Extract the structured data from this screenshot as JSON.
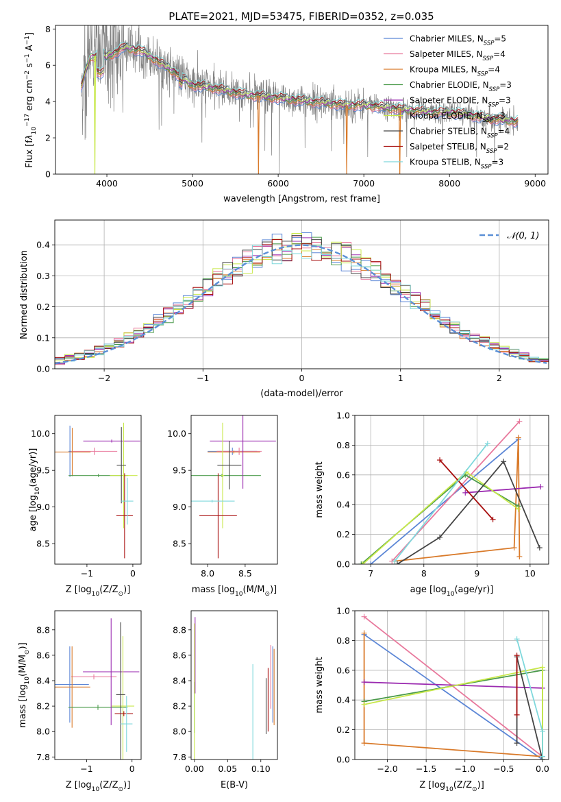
{
  "figure_title": "PLATE=2021, MJD=53475, FIBERID=0352, z=0.035",
  "colors": {
    "Chabrier MILES": "#5b86d6",
    "Salpeter MILES": "#e8789c",
    "Kroupa MILES": "#d97a2a",
    "Chabrier ELODIE": "#4a9a4a",
    "Salpeter ELODIE": "#9b2bb0",
    "Kroupa ELODIE": "#c8e84a",
    "Chabrier STELIB": "#444444",
    "Salpeter STELIB": "#a80f0f",
    "Kroupa STELIB": "#7fd8dc"
  },
  "chart_data": [
    {
      "id": "spectrum",
      "type": "line",
      "title": "",
      "xlabel": "wavelength [Angstrom, rest frame]",
      "ylabel_parts": [
        "Flux [f",
        "λ",
        "10",
        "−17",
        " erg cm",
        "−2",
        " s",
        "−1",
        " A",
        "−1",
        "]"
      ],
      "xlim": [
        3400,
        9150
      ],
      "ylim": [
        0,
        8.2
      ],
      "xticks": [
        4000,
        5000,
        6000,
        7000,
        8000,
        9000
      ],
      "yticks": [
        0,
        2,
        4,
        6,
        8
      ],
      "data_color": "#808080",
      "legend_placement": "upper-right",
      "legend": [
        {
          "name": "Chabrier MILES",
          "nssp": "5"
        },
        {
          "name": "Salpeter MILES",
          "nssp": "4"
        },
        {
          "name": "Kroupa MILES",
          "nssp": "4"
        },
        {
          "name": "Chabrier ELODIE",
          "nssp": "3"
        },
        {
          "name": "Salpeter ELODIE",
          "nssp": "3"
        },
        {
          "name": "Kroupa ELODIE",
          "nssp": "3"
        },
        {
          "name": "Chabrier STELIB",
          "nssp": "4"
        },
        {
          "name": "Salpeter STELIB",
          "nssp": "2"
        },
        {
          "name": "Kroupa STELIB",
          "nssp": "3"
        }
      ],
      "continuum": {
        "x": [
          3700,
          3800,
          3900,
          4000,
          4100,
          4200,
          4400,
          4600,
          4800,
          5000,
          5200,
          5400,
          5600,
          5800,
          6000,
          6200,
          6400,
          6600,
          6800,
          7000,
          7200,
          7400,
          7600,
          7800,
          8000,
          8200,
          8400,
          8600,
          8800
        ],
        "y": [
          4.8,
          6.4,
          6.6,
          6.5,
          6.7,
          7.0,
          6.8,
          6.2,
          5.6,
          4.9,
          4.8,
          4.6,
          4.4,
          4.3,
          4.2,
          4.1,
          4.0,
          3.9,
          3.8,
          3.8,
          3.7,
          3.6,
          3.5,
          3.4,
          3.4,
          3.3,
          3.1,
          3.0,
          2.9
        ]
      },
      "model_dropouts": [
        {
          "model": "Kroupa MILES",
          "x": 5770
        },
        {
          "model": "Kroupa MILES",
          "x": 6800
        },
        {
          "model": "Kroupa MILES",
          "x": 7420
        },
        {
          "model": "Kroupa ELODIE",
          "x": 3860
        }
      ]
    },
    {
      "id": "residuals",
      "type": "step",
      "xlabel": "(data-model)/error",
      "ylabel": "Normed distribution",
      "xlim": [
        -2.5,
        2.5
      ],
      "ylim": [
        0,
        0.48
      ],
      "xticks": [
        -2,
        -1,
        0,
        1,
        2
      ],
      "xtick_labels": [
        "−2",
        "−1",
        "0",
        "1",
        "2"
      ],
      "yticks": [
        0,
        0.1,
        0.2,
        0.3,
        0.4
      ],
      "ytick_labels": [
        "0.0",
        "0.1",
        "0.2",
        "0.3",
        "0.4"
      ],
      "grid": true,
      "legend_placement": "upper-right",
      "gaussian": {
        "label": "𝒩(0, 1)",
        "mean": 0,
        "sigma": 1,
        "color": "#5b8fd6"
      },
      "bin_width": 0.1
    },
    {
      "id": "age-vs-z",
      "type": "errorbar",
      "xlabel_parts": [
        "Z [log",
        "10",
        "(Z/Z",
        "⊙",
        ")]"
      ],
      "ylabel_parts": [
        "age  [log",
        "10",
        "(age/yr)]"
      ],
      "xlim": [
        -1.7,
        0.18
      ],
      "ylim": [
        8.22,
        10.25
      ],
      "xticks": [
        -1,
        0
      ],
      "xtick_labels": [
        "−1",
        "0"
      ],
      "yticks": [
        8.5,
        9.0,
        9.5,
        10.0
      ],
      "ytick_labels": [
        "8.5",
        "9.0",
        "9.5",
        "10.0"
      ],
      "points": [
        {
          "model": "Chabrier MILES",
          "x": -1.37,
          "y": 9.76,
          "xerr": 0.03,
          "yerr": 0.35
        },
        {
          "model": "Salpeter MILES",
          "x": -0.84,
          "y": 9.76,
          "xerr": 0.5,
          "yerr": 0.05
        },
        {
          "model": "Kroupa MILES",
          "x": -1.32,
          "y": 9.75,
          "xerr": 0.4,
          "yerr": 0.33
        },
        {
          "model": "Chabrier ELODIE",
          "x": -0.75,
          "y": 9.43,
          "xerr": 0.65,
          "yerr": 0.02
        },
        {
          "model": "Salpeter ELODIE",
          "x": -0.46,
          "y": 9.9,
          "xerr": 0.62,
          "yerr": 0.02
        },
        {
          "model": "Kroupa ELODIE",
          "x": -0.2,
          "y": 9.43,
          "xerr": 0.3,
          "yerr": 0.72
        },
        {
          "model": "Chabrier STELIB",
          "x": -0.25,
          "y": 9.57,
          "xerr": 0.1,
          "yerr": 0.52
        },
        {
          "model": "Salpeter STELIB",
          "x": -0.18,
          "y": 8.88,
          "xerr": 0.18,
          "yerr": 0.58
        },
        {
          "model": "Kroupa STELIB",
          "x": -0.12,
          "y": 9.08,
          "xerr": 0.13,
          "yerr": 0.32
        }
      ]
    },
    {
      "id": "age-vs-mass",
      "type": "errorbar",
      "xlabel_parts": [
        "mass [log",
        "10",
        "(M/M",
        "⊙",
        ")]"
      ],
      "ylabel_parts": [],
      "xlim": [
        7.78,
        8.93
      ],
      "ylim": [
        8.22,
        10.25
      ],
      "xticks": [
        8.0,
        8.5
      ],
      "xtick_labels": [
        "8.0",
        "8.5"
      ],
      "yticks": [
        8.5,
        9.0,
        9.5,
        10.0
      ],
      "ytick_labels": [
        "8.5",
        "9.0",
        "9.5",
        "10.0"
      ],
      "points": [
        {
          "model": "Chabrier MILES",
          "x": 8.33,
          "y": 9.76,
          "xerr": 0.33,
          "yerr": 0.05
        },
        {
          "model": "Salpeter MILES",
          "x": 8.42,
          "y": 9.76,
          "xerr": 0.3,
          "yerr": 0.05
        },
        {
          "model": "Kroupa MILES",
          "x": 8.35,
          "y": 9.75,
          "xerr": 0.35,
          "yerr": 0.02
        },
        {
          "model": "Chabrier ELODIE",
          "x": 8.19,
          "y": 9.43,
          "xerr": 0.52,
          "yerr": 0.02
        },
        {
          "model": "Salpeter ELODIE",
          "x": 8.47,
          "y": 9.9,
          "xerr": 0.44,
          "yerr": 0.65
        },
        {
          "model": "Kroupa ELODIE",
          "x": 8.2,
          "y": 9.43,
          "xerr": 0.02,
          "yerr": 0.72
        },
        {
          "model": "Chabrier STELIB",
          "x": 8.29,
          "y": 9.57,
          "xerr": 0.16,
          "yerr": 0.33
        },
        {
          "model": "Salpeter STELIB",
          "x": 8.14,
          "y": 8.88,
          "xerr": 0.25,
          "yerr": 0.58
        },
        {
          "model": "Kroupa STELIB",
          "x": 8.06,
          "y": 9.08,
          "xerr": 0.3,
          "yerr": 0.02
        }
      ]
    },
    {
      "id": "weight-vs-age",
      "type": "line",
      "xlabel_parts": [
        "age  [log",
        "10",
        "(age/yr)]"
      ],
      "ylabel": "mass weight",
      "xlim": [
        6.7,
        10.35
      ],
      "ylim": [
        0,
        1.0
      ],
      "xticks": [
        7,
        8,
        9,
        10
      ],
      "xtick_labels": [
        "7",
        "8",
        "9",
        "10"
      ],
      "yticks": [
        0,
        0.2,
        0.4,
        0.6,
        0.8,
        1.0
      ],
      "ytick_labels": [
        "0.0",
        "0.2",
        "0.4",
        "0.6",
        "0.8",
        "1.0"
      ],
      "grid": true,
      "series": [
        {
          "model": "Chabrier MILES",
          "x": [
            7.0,
            9.78
          ],
          "y": [
            0.0,
            0.84
          ]
        },
        {
          "model": "Salpeter MILES",
          "x": [
            7.4,
            9.8
          ],
          "y": [
            0.02,
            0.96
          ]
        },
        {
          "model": "Kroupa MILES",
          "x": [
            7.45,
            9.7,
            9.78,
            9.8
          ],
          "y": [
            0.02,
            0.11,
            0.85,
            0.05
          ]
        },
        {
          "model": "Chabrier ELODIE",
          "x": [
            6.82,
            8.78,
            9.78
          ],
          "y": [
            0.0,
            0.6,
            0.39
          ]
        },
        {
          "model": "Salpeter ELODIE",
          "x": [
            8.78,
            10.2
          ],
          "y": [
            0.48,
            0.52
          ]
        },
        {
          "model": "Kroupa ELODIE",
          "x": [
            6.85,
            8.8,
            9.78
          ],
          "y": [
            0.0,
            0.62,
            0.37
          ]
        },
        {
          "model": "Chabrier STELIB",
          "x": [
            7.5,
            8.3,
            9.5,
            10.18
          ],
          "y": [
            0.0,
            0.18,
            0.69,
            0.11
          ]
        },
        {
          "model": "Salpeter STELIB",
          "x": [
            8.3,
            9.3
          ],
          "y": [
            0.7,
            0.3
          ]
        },
        {
          "model": "Kroupa STELIB",
          "x": [
            7.45,
            9.2
          ],
          "y": [
            0.02,
            0.81
          ]
        }
      ]
    },
    {
      "id": "mass-vs-z",
      "type": "errorbar",
      "xlabel_parts": [
        "Z [log",
        "10",
        "(Z/Z",
        "⊙",
        ")]"
      ],
      "ylabel_parts": [
        "mass [log",
        "10",
        "(M/M",
        "⊙",
        ")]"
      ],
      "xlim": [
        -1.7,
        0.2
      ],
      "ylim": [
        7.78,
        8.95
      ],
      "xticks": [
        -1,
        0
      ],
      "xtick_labels": [
        "−1",
        "0"
      ],
      "yticks": [
        7.8,
        8.0,
        8.2,
        8.4,
        8.6,
        8.8
      ],
      "ytick_labels": [
        "7.8",
        "8.0",
        "8.2",
        "8.4",
        "8.6",
        "8.8"
      ],
      "points": [
        {
          "model": "Chabrier MILES",
          "x": -1.37,
          "y": 8.37,
          "xerr": 0.42,
          "yerr": 0.3
        },
        {
          "model": "Salpeter MILES",
          "x": -0.84,
          "y": 8.43,
          "xerr": 0.5,
          "yerr": 0.02
        },
        {
          "model": "Kroupa MILES",
          "x": -1.32,
          "y": 8.35,
          "xerr": 0.4,
          "yerr": 0.32
        },
        {
          "model": "Chabrier ELODIE",
          "x": -0.75,
          "y": 8.19,
          "xerr": 0.65,
          "yerr": 0.02
        },
        {
          "model": "Salpeter ELODIE",
          "x": -0.46,
          "y": 8.47,
          "xerr": 0.62,
          "yerr": 0.42
        },
        {
          "model": "Kroupa ELODIE",
          "x": -0.2,
          "y": 8.2,
          "xerr": 0.25,
          "yerr": 0.55
        },
        {
          "model": "Chabrier STELIB",
          "x": -0.25,
          "y": 8.29,
          "xerr": 0.1,
          "yerr": 0.57
        },
        {
          "model": "Salpeter STELIB",
          "x": -0.18,
          "y": 8.14,
          "xerr": 0.2,
          "yerr": 0.02
        },
        {
          "model": "Kroupa STELIB",
          "x": -0.12,
          "y": 8.06,
          "xerr": 0.13,
          "yerr": 0.22
        }
      ]
    },
    {
      "id": "mass-vs-ebv",
      "type": "errorbar",
      "xlabel_parts": [
        "E(B-V)"
      ],
      "ylabel_parts": [],
      "xlim": [
        -0.005,
        0.125
      ],
      "ylim": [
        7.78,
        8.95
      ],
      "xticks": [
        0.0,
        0.05,
        0.1
      ],
      "xtick_labels": [
        "0.00",
        "0.05",
        "0.10"
      ],
      "yticks": [
        7.8,
        8.0,
        8.2,
        8.4,
        8.6,
        8.8
      ],
      "ytick_labels": [
        "7.8",
        "8.0",
        "8.2",
        "8.4",
        "8.6",
        "8.8"
      ],
      "points": [
        {
          "model": "Chabrier MILES",
          "x": 0.118,
          "y": 8.37,
          "xerr": 0.0,
          "yerr": 0.3
        },
        {
          "model": "Salpeter MILES",
          "x": 0.115,
          "y": 8.43,
          "xerr": 0.0,
          "yerr": 0.25
        },
        {
          "model": "Kroupa MILES",
          "x": 0.12,
          "y": 8.35,
          "xerr": 0.0,
          "yerr": 0.3
        },
        {
          "model": "Chabrier ELODIE",
          "x": 0.0,
          "y": 8.19,
          "xerr": 0.0,
          "yerr": 0.2
        },
        {
          "model": "Salpeter ELODIE",
          "x": 0.001,
          "y": 8.6,
          "xerr": 0.0,
          "yerr": 0.3
        },
        {
          "model": "Kroupa ELODIE",
          "x": 0.0,
          "y": 8.2,
          "xerr": 0.0,
          "yerr": 0.65
        },
        {
          "model": "Chabrier STELIB",
          "x": 0.108,
          "y": 8.2,
          "xerr": 0.0,
          "yerr": 0.22
        },
        {
          "model": "Salpeter STELIB",
          "x": 0.111,
          "y": 8.25,
          "xerr": 0.0,
          "yerr": 0.25
        },
        {
          "model": "Kroupa STELIB",
          "x": 0.088,
          "y": 8.15,
          "xerr": 0.0,
          "yerr": 0.38
        }
      ]
    },
    {
      "id": "weight-vs-z",
      "type": "line",
      "xlabel_parts": [
        "Z [log",
        "10",
        "(Z/Z",
        "⊙",
        ")]"
      ],
      "ylabel": "mass weight",
      "xlim": [
        -2.42,
        0.08
      ],
      "ylim": [
        0,
        1.0
      ],
      "xticks": [
        -2.0,
        -1.5,
        -1.0,
        -0.5,
        0.0
      ],
      "xtick_labels": [
        "−2.0",
        "−1.5",
        "−1.0",
        "−0.5",
        "0.0"
      ],
      "yticks": [
        0,
        0.2,
        0.4,
        0.6,
        0.8,
        1.0
      ],
      "ytick_labels": [
        "0.0",
        "0.2",
        "0.4",
        "0.6",
        "0.8",
        "1.0"
      ],
      "grid": true,
      "series": [
        {
          "model": "Chabrier MILES",
          "x": [
            -2.3,
            0.0
          ],
          "y": [
            0.84,
            0.0
          ]
        },
        {
          "model": "Salpeter MILES",
          "x": [
            -2.3,
            0.0
          ],
          "y": [
            0.96,
            0.02
          ]
        },
        {
          "model": "Kroupa MILES",
          "x": [
            -2.3,
            -2.3,
            0.0
          ],
          "y": [
            0.85,
            0.11,
            0.02
          ]
        },
        {
          "model": "Chabrier ELODIE",
          "x": [
            -2.3,
            0.0,
            0.0
          ],
          "y": [
            0.39,
            0.6,
            0.0
          ]
        },
        {
          "model": "Salpeter ELODIE",
          "x": [
            -2.3,
            0.0
          ],
          "y": [
            0.52,
            0.48
          ]
        },
        {
          "model": "Kroupa ELODIE",
          "x": [
            -2.3,
            0.0,
            0.0
          ],
          "y": [
            0.37,
            0.62,
            0.0
          ]
        },
        {
          "model": "Chabrier STELIB",
          "x": [
            -0.33,
            -0.33,
            0.0
          ],
          "y": [
            0.11,
            0.69,
            0.0
          ]
        },
        {
          "model": "Salpeter STELIB",
          "x": [
            -0.33,
            -0.33
          ],
          "y": [
            0.7,
            0.3
          ]
        },
        {
          "model": "Kroupa STELIB",
          "x": [
            -0.33,
            0.0,
            0.0
          ],
          "y": [
            0.81,
            0.19,
            0.02
          ]
        }
      ]
    }
  ]
}
